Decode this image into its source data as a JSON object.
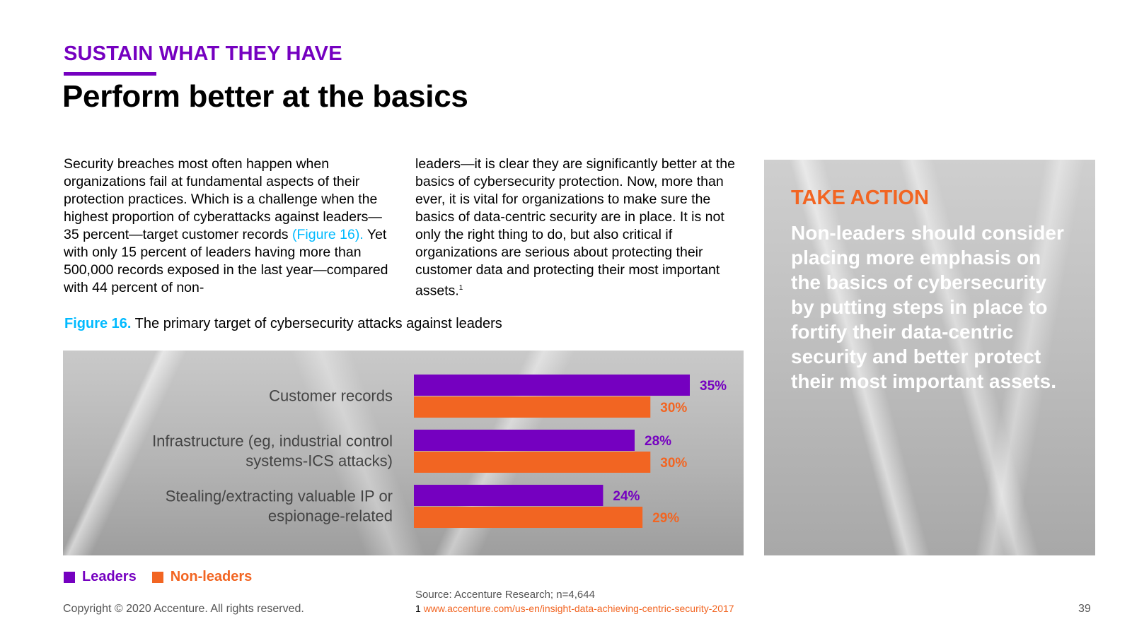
{
  "header": {
    "eyebrow": "SUSTAIN WHAT THEY HAVE",
    "title": "Perform better at the basics"
  },
  "body": {
    "col1_before_link": "Security breaches most often happen when organizations fail at fundamental aspects of their protection practices. Which is a challenge when the highest proportion of cyberattacks against leaders—35 percent—target customer records ",
    "col1_link": "(Figure 16).",
    "col1_after_link": " Yet with only 15 percent of leaders having more than 500,000 records exposed in the last year—compared with 44 percent of non-",
    "col2_text": "leaders—it is clear they are significantly better at the basics of cybersecurity protection. Now, more than ever, it is vital for organizations to make sure the basics of data-centric security are in place. It is not only the right thing to do, but also critical if organizations are serious about protecting their customer data and protecting their most important assets.",
    "col2_sup": "1"
  },
  "figure": {
    "label": "Figure 16.",
    "caption": " The primary target of cybersecurity attacks against leaders"
  },
  "chart_data": {
    "type": "bar",
    "orientation": "horizontal",
    "title": "The primary target of cybersecurity attacks against leaders",
    "categories": [
      [
        "Customer records"
      ],
      [
        "Infrastructure (eg, industrial control",
        "systems-ICS attacks)"
      ],
      [
        "Stealing/extracting valuable IP or",
        "espionage-related"
      ]
    ],
    "series": [
      {
        "name": "Leaders",
        "color": "#7500c0",
        "values": [
          35,
          28,
          24
        ]
      },
      {
        "name": "Non-leaders",
        "color": "#f26522",
        "values": [
          30,
          30,
          29
        ]
      }
    ],
    "value_suffix": "%",
    "xlim": [
      0,
      35
    ],
    "legend": "bottom-left"
  },
  "legend": {
    "leaders": "Leaders",
    "non_leaders": "Non-leaders"
  },
  "take_action": {
    "title": "TAKE ACTION",
    "text": "Non-leaders should consider placing more emphasis on the basics of cybersecurity by putting steps in place to fortify their data-centric security and better protect their most important assets."
  },
  "footer": {
    "source": "Source: Accenture Research; n=4,644",
    "footnote_number": "1",
    "footnote_url": "www.accenture.com/us-en/insight-data-achieving-centric-security-2017",
    "copyright": "Copyright © 2020 Accenture. All rights reserved.",
    "page_number": "39"
  },
  "colors": {
    "purple": "#7500c0",
    "orange": "#f26522",
    "cyan": "#00baff"
  }
}
